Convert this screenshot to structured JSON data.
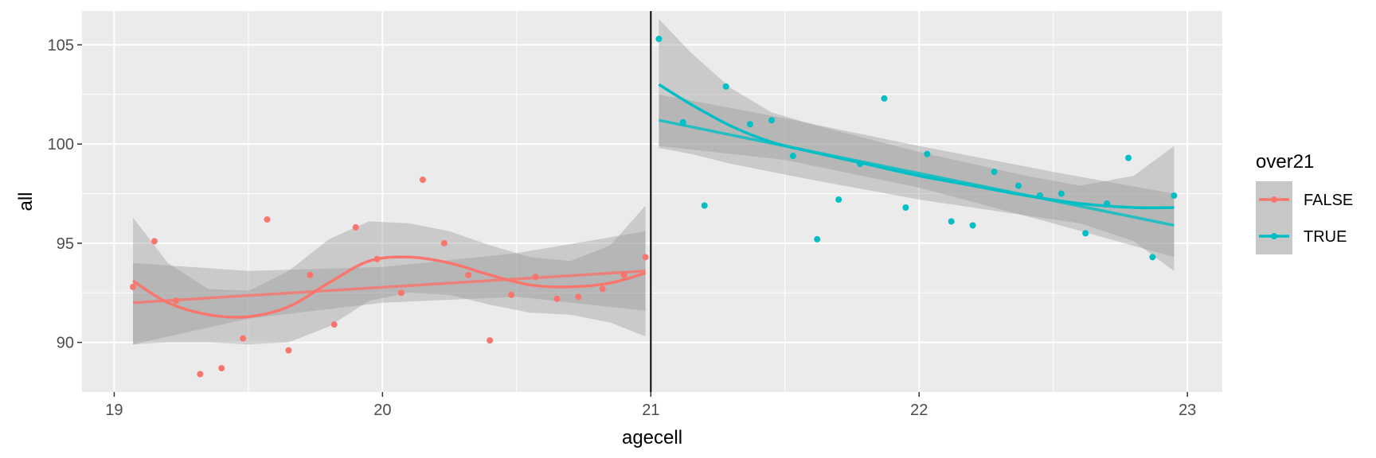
{
  "chart_data": {
    "type": "scatter",
    "title": "",
    "xlabel": "agecell",
    "ylabel": "all",
    "xlim": [
      18.88,
      23.13
    ],
    "ylim": [
      87.5,
      106.7
    ],
    "x_ticks": [
      19,
      20,
      21,
      22,
      23
    ],
    "y_ticks": [
      90,
      95,
      100,
      105
    ],
    "grid": true,
    "cutoff": 21,
    "legend": {
      "title": "over21",
      "position": "right"
    },
    "series": [
      {
        "name": "FALSE",
        "color": "#f8766d",
        "x": [
          19.07,
          19.15,
          19.23,
          19.32,
          19.4,
          19.48,
          19.57,
          19.65,
          19.73,
          19.82,
          19.9,
          19.98,
          20.07,
          20.15,
          20.23,
          20.32,
          20.4,
          20.48,
          20.57,
          20.65,
          20.73,
          20.82,
          20.9,
          20.98
        ],
        "y": [
          92.8,
          95.1,
          92.1,
          88.4,
          88.7,
          90.2,
          96.2,
          89.6,
          93.4,
          90.9,
          95.8,
          94.2,
          92.5,
          98.2,
          95.0,
          93.4,
          90.1,
          92.4,
          93.3,
          92.2,
          92.3,
          92.7,
          93.4,
          94.3
        ],
        "linear_fit": {
          "x": [
            19.07,
            20.98
          ],
          "y": [
            92.0,
            93.6
          ]
        },
        "linear_band": {
          "x": [
            19.07,
            19.5,
            20.0,
            20.5,
            20.98
          ],
          "upper": [
            94.0,
            93.6,
            93.8,
            94.5,
            95.6
          ],
          "lower": [
            89.9,
            91.2,
            92.0,
            92.3,
            91.6
          ]
        },
        "loess_fit": {
          "x": [
            19.07,
            19.2,
            19.35,
            19.5,
            19.65,
            19.8,
            19.95,
            20.1,
            20.25,
            20.4,
            20.55,
            20.7,
            20.85,
            20.98
          ],
          "y": [
            93.1,
            92.0,
            91.4,
            91.3,
            91.8,
            93.0,
            94.1,
            94.3,
            94.0,
            93.4,
            92.9,
            92.8,
            93.0,
            93.5
          ]
        },
        "loess_band": {
          "x": [
            19.07,
            19.2,
            19.35,
            19.5,
            19.65,
            19.8,
            19.95,
            20.1,
            20.25,
            20.4,
            20.55,
            20.7,
            20.85,
            20.98
          ],
          "upper": [
            96.3,
            94.0,
            92.7,
            92.6,
            93.6,
            95.2,
            96.1,
            96.0,
            95.6,
            94.9,
            94.3,
            94.1,
            94.9,
            96.9
          ],
          "lower": [
            89.9,
            90.0,
            90.0,
            89.9,
            90.0,
            90.8,
            92.1,
            92.5,
            92.4,
            91.9,
            91.5,
            91.4,
            91.0,
            90.3
          ]
        }
      },
      {
        "name": "TRUE",
        "color": "#00bfc4",
        "x": [
          21.03,
          21.12,
          21.2,
          21.28,
          21.37,
          21.45,
          21.53,
          21.62,
          21.7,
          21.78,
          21.87,
          21.95,
          22.03,
          22.12,
          22.2,
          22.28,
          22.37,
          22.45,
          22.53,
          22.62,
          22.7,
          22.78,
          22.87,
          22.95
        ],
        "y": [
          105.3,
          101.1,
          96.9,
          102.9,
          101.0,
          101.2,
          99.4,
          95.2,
          97.2,
          99.0,
          102.3,
          96.8,
          99.5,
          96.1,
          95.9,
          98.6,
          97.9,
          97.4,
          97.5,
          95.5,
          97.0,
          99.3,
          94.3,
          97.4
        ],
        "linear_fit": {
          "x": [
            21.03,
            22.95
          ],
          "y": [
            101.2,
            95.9
          ]
        },
        "linear_band": {
          "x": [
            21.03,
            21.5,
            22.0,
            22.5,
            22.95
          ],
          "upper": [
            102.5,
            101.3,
            99.9,
            98.6,
            97.5
          ],
          "lower": [
            99.9,
            99.2,
            97.8,
            96.0,
            94.3
          ]
        },
        "loess_fit": {
          "x": [
            21.03,
            21.15,
            21.3,
            21.45,
            21.6,
            21.8,
            22.0,
            22.2,
            22.4,
            22.6,
            22.8,
            22.95
          ],
          "y": [
            103.0,
            102.0,
            100.9,
            100.1,
            99.6,
            99.0,
            98.4,
            97.9,
            97.4,
            97.0,
            96.8,
            96.8
          ]
        },
        "loess_band": {
          "x": [
            21.03,
            21.15,
            21.3,
            21.45,
            21.6,
            21.8,
            22.0,
            22.2,
            22.4,
            22.6,
            22.8,
            22.95
          ],
          "upper": [
            106.3,
            104.6,
            102.8,
            101.6,
            101.0,
            100.3,
            99.6,
            99.0,
            98.4,
            97.9,
            98.4,
            99.9
          ],
          "lower": [
            99.8,
            99.5,
            99.0,
            98.6,
            98.2,
            97.7,
            97.2,
            96.8,
            96.4,
            96.0,
            95.1,
            93.6
          ]
        }
      }
    ]
  }
}
